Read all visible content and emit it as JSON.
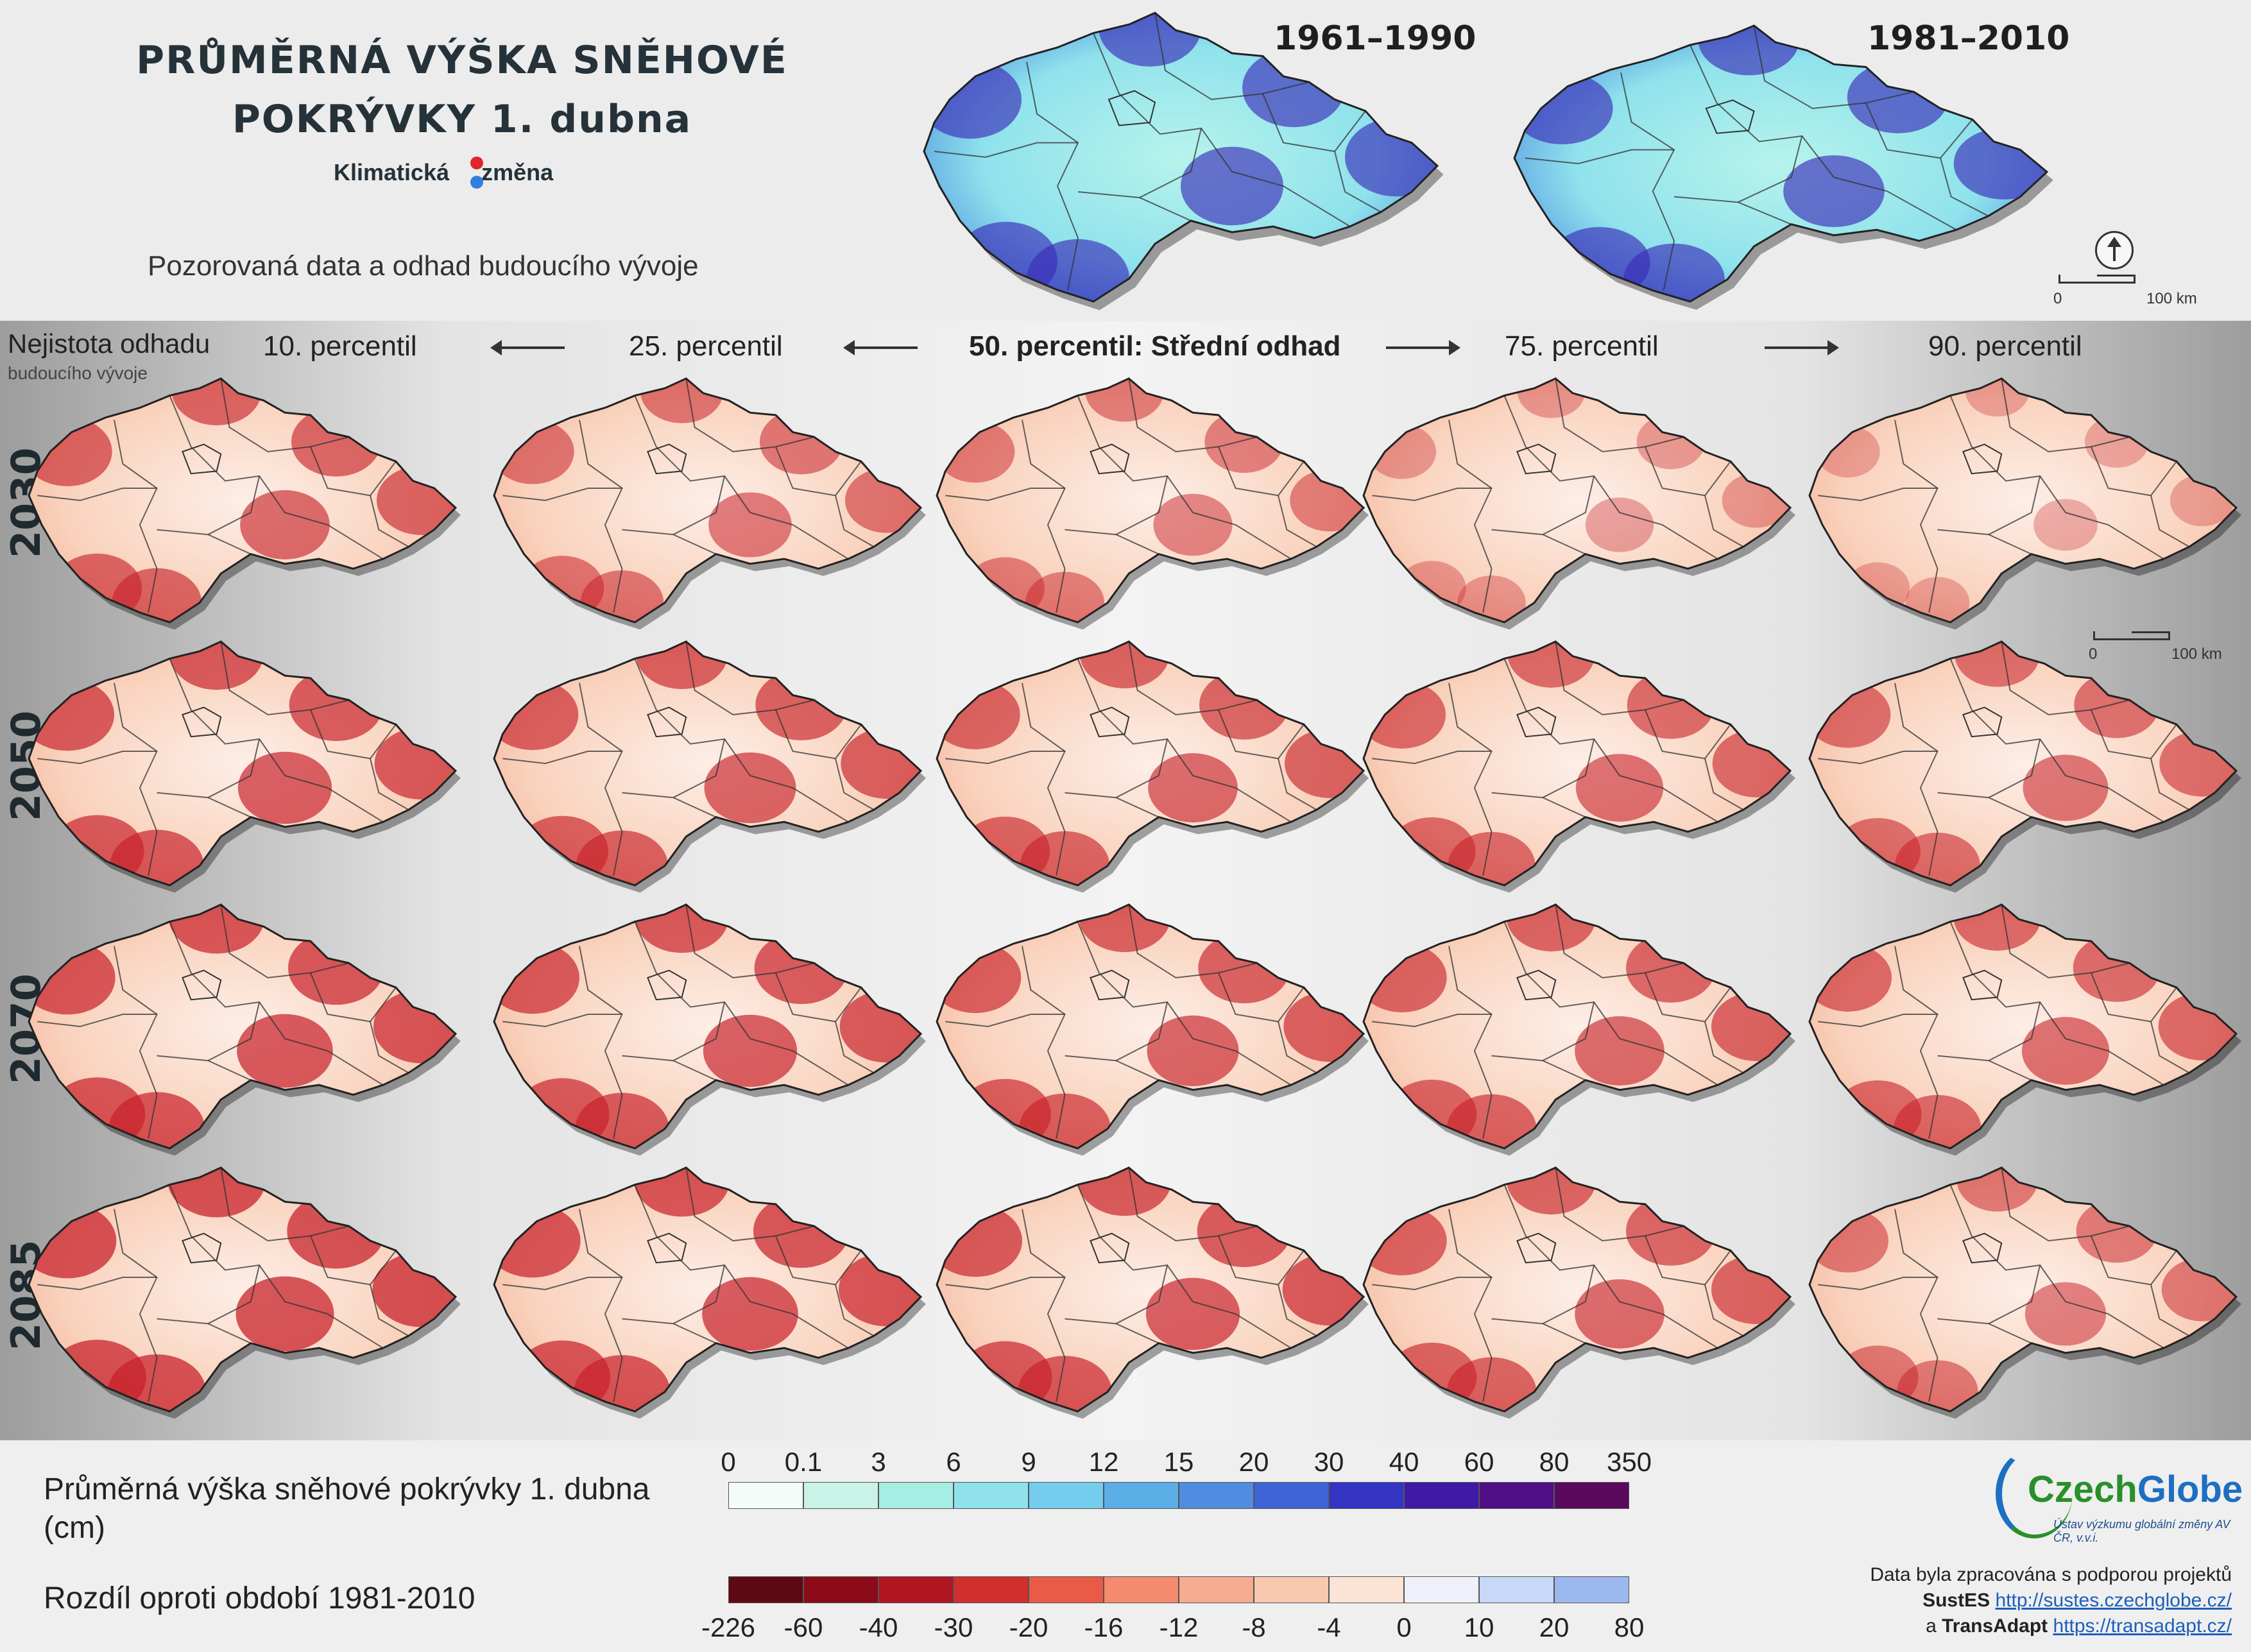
{
  "title_line1": "PRŮMĚRNÁ VÝŠKA SNĚHOVÉ",
  "title_line2": "POKRÝVKY 1. dubna",
  "brand": {
    "word1": "Klimatická",
    "word2": "změna"
  },
  "subtitle": "Pozorovaná data a odhad budoucího vývoje",
  "observed_periods": [
    "1961–1990",
    "1981–2010"
  ],
  "scale_labels": {
    "zero": "0",
    "max": "100 km"
  },
  "uncertainty": {
    "label": "Nejistota odhadu",
    "sublabel": "budoucího vývoje"
  },
  "percentiles": [
    "10. percentil",
    "25. percentil",
    "50. percentil: Střední odhad",
    "75. percentil",
    "90. percentil"
  ],
  "years": [
    "2030",
    "2050",
    "2070",
    "2085"
  ],
  "legend": {
    "depth_title": "Průměrná výška sněhové pokrývky 1. dubna",
    "depth_unit": "(cm)",
    "diff_title": "Rozdíl oproti období 1981-2010",
    "depth_ticks": [
      "0",
      "0.1",
      "3",
      "6",
      "9",
      "12",
      "15",
      "20",
      "30",
      "40",
      "60",
      "80",
      "350"
    ],
    "depth_colors": [
      "#f3fcf8",
      "#c9f3e6",
      "#a6eee4",
      "#8fe2ec",
      "#74cdec",
      "#5caee6",
      "#4f8de0",
      "#3e63d6",
      "#3334c4",
      "#3f1aa6",
      "#4e0f85",
      "#5a0a5e"
    ],
    "diff_ticks": [
      "-226",
      "-60",
      "-40",
      "-30",
      "-20",
      "-16",
      "-12",
      "-8",
      "-4",
      "0",
      "10",
      "20",
      "80"
    ],
    "diff_colors": [
      "#5e0a12",
      "#8c0b18",
      "#b01522",
      "#d12e2e",
      "#ea5a47",
      "#f48a6e",
      "#f7ab90",
      "#f9c8ae",
      "#fbe3d5",
      "#eef0fa",
      "#c7d8f8",
      "#9bb8ef"
    ]
  },
  "logo": {
    "name1": "Czech",
    "name2": "Globe",
    "tagline": "Ústav výzkumu globální změny AV ČR, v.v.i."
  },
  "credits": {
    "line1": "Data byla zpracována s podporou projektů",
    "p1": "SustES",
    "u1": "http://sustes.czechglobe.cz/",
    "conj": "a",
    "p2": "TransAdapt",
    "u2": "https://transadapt.cz/"
  }
}
